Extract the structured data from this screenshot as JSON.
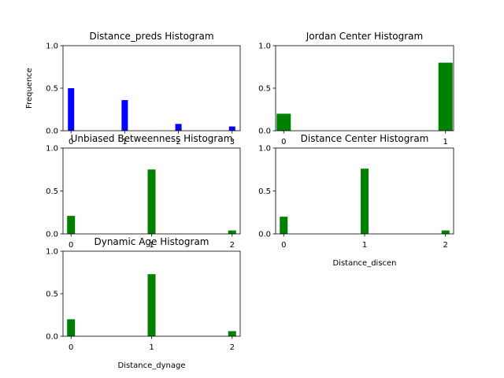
{
  "chart_data": [
    {
      "type": "bar",
      "title": "Distance_preds Histogram",
      "xlabel": "",
      "ylabel": "Frequence",
      "color": "#0000ff",
      "x": [
        0,
        1,
        2,
        3
      ],
      "values": [
        0.5,
        0.36,
        0.08,
        0.05
      ],
      "xlim": [
        -0.15,
        3.15
      ],
      "ylim": [
        0,
        1.0
      ],
      "xticks": [
        "0",
        "1",
        "2",
        "3"
      ],
      "yticks": [
        "0.0",
        "0.5",
        "1.0"
      ],
      "grid": false
    },
    {
      "type": "bar",
      "title": "Jordan Center Histogram",
      "xlabel": "",
      "ylabel": "",
      "color": "#008000",
      "x": [
        0,
        1
      ],
      "values": [
        0.2,
        0.8
      ],
      "xlim": [
        -0.05,
        1.05
      ],
      "ylim": [
        0,
        1.0
      ],
      "xticks": [
        "0",
        "1"
      ],
      "yticks": [
        "0.0",
        "0.5",
        "1.0"
      ],
      "grid": false
    },
    {
      "type": "bar",
      "title": "Unbiased Betweenness Histogram",
      "xlabel": "",
      "ylabel": "",
      "color": "#008000",
      "x": [
        0,
        1,
        2
      ],
      "values": [
        0.21,
        0.75,
        0.04
      ],
      "xlim": [
        -0.1,
        2.1
      ],
      "ylim": [
        0,
        1.0
      ],
      "xticks": [
        "0",
        "1",
        "2"
      ],
      "yticks": [
        "0.0",
        "0.5",
        "1.0"
      ],
      "grid": false
    },
    {
      "type": "bar",
      "title": "Distance Center Histogram",
      "xlabel": "Distance_discen",
      "ylabel": "",
      "color": "#008000",
      "x": [
        0,
        1,
        2
      ],
      "values": [
        0.2,
        0.76,
        0.04
      ],
      "xlim": [
        -0.1,
        2.1
      ],
      "ylim": [
        0,
        1.0
      ],
      "xticks": [
        "0",
        "1",
        "2"
      ],
      "yticks": [
        "0.0",
        "0.5",
        "1.0"
      ],
      "grid": false
    },
    {
      "type": "bar",
      "title": "Dynamic Age Histogram",
      "xlabel": "Distance_dynage",
      "ylabel": "",
      "color": "#008000",
      "x": [
        0,
        1,
        2
      ],
      "values": [
        0.2,
        0.73,
        0.06
      ],
      "xlim": [
        -0.1,
        2.1
      ],
      "ylim": [
        0,
        1.0
      ],
      "xticks": [
        "0",
        "1",
        "2"
      ],
      "yticks": [
        "0.0",
        "0.5",
        "1.0"
      ],
      "grid": false
    }
  ]
}
